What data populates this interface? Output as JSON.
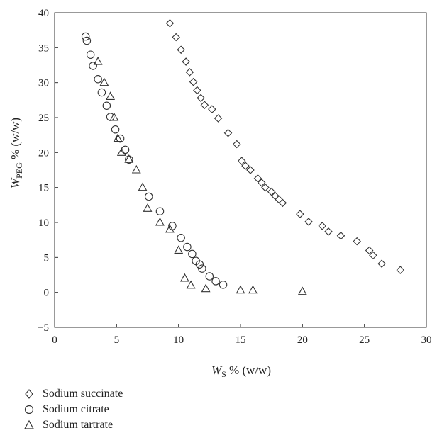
{
  "chart_data": {
    "type": "scatter",
    "xlabel": {
      "main": "W",
      "sub": "S",
      "rest": " % (w/w)"
    },
    "ylabel": {
      "main": "W",
      "sub": "PEG",
      "rest": " % (w/w)"
    },
    "xlim": [
      0,
      30
    ],
    "ylim": [
      -5,
      40
    ],
    "xticks": [
      0,
      5,
      10,
      15,
      20,
      25,
      30
    ],
    "yticks": [
      -5,
      0,
      5,
      10,
      15,
      20,
      25,
      30,
      35,
      40
    ],
    "grid": false,
    "legend_position": "bottom-left",
    "series": [
      {
        "name": "Sodium succinate",
        "marker": "diamond",
        "x": [
          9.3,
          9.8,
          10.2,
          10.6,
          10.9,
          11.2,
          11.5,
          11.8,
          12.1,
          12.7,
          13.2,
          14.0,
          14.7,
          15.1,
          15.4,
          15.8,
          16.4,
          16.7,
          17.0,
          17.5,
          17.8,
          18.1,
          18.4,
          19.8,
          20.5,
          21.6,
          22.1,
          23.1,
          24.4,
          25.4,
          25.7,
          26.4,
          27.9
        ],
        "y": [
          38.5,
          36.5,
          34.7,
          33.0,
          31.5,
          30.1,
          28.9,
          27.8,
          26.8,
          26.2,
          24.9,
          22.8,
          21.2,
          18.8,
          18.1,
          17.5,
          16.3,
          15.7,
          15.0,
          14.4,
          13.8,
          13.3,
          12.8,
          11.2,
          10.1,
          9.5,
          8.7,
          8.1,
          7.3,
          6.0,
          5.3,
          4.1,
          3.2
        ]
      },
      {
        "name": "Sodium citrate",
        "marker": "circle",
        "x": [
          2.5,
          2.6,
          2.9,
          3.1,
          3.5,
          3.8,
          4.2,
          4.5,
          4.9,
          5.3,
          5.7,
          6.0,
          7.6,
          8.5,
          9.5,
          10.2,
          10.7,
          11.1,
          11.4,
          11.7,
          11.9,
          12.5,
          13.0,
          13.6
        ],
        "y": [
          36.6,
          36.0,
          34.0,
          32.4,
          30.5,
          28.6,
          26.7,
          25.1,
          23.3,
          22.0,
          20.4,
          19.0,
          13.7,
          11.6,
          9.5,
          7.8,
          6.5,
          5.5,
          4.5,
          4.0,
          3.4,
          2.3,
          1.6,
          1.1
        ]
      },
      {
        "name": "Sodium tartrate",
        "marker": "triangle",
        "x": [
          3.5,
          4.0,
          4.5,
          4.8,
          5.1,
          5.4,
          6.0,
          6.6,
          7.1,
          7.5,
          8.5,
          9.3,
          10.0,
          10.5,
          11.0,
          12.2,
          15.0,
          16.0,
          20.0
        ],
        "y": [
          33.0,
          30.0,
          28.0,
          25.0,
          22.0,
          20.0,
          19.0,
          17.5,
          15.0,
          12.0,
          10.0,
          9.0,
          6.0,
          2.0,
          1.0,
          0.5,
          0.3,
          0.3,
          0.1
        ]
      }
    ]
  }
}
